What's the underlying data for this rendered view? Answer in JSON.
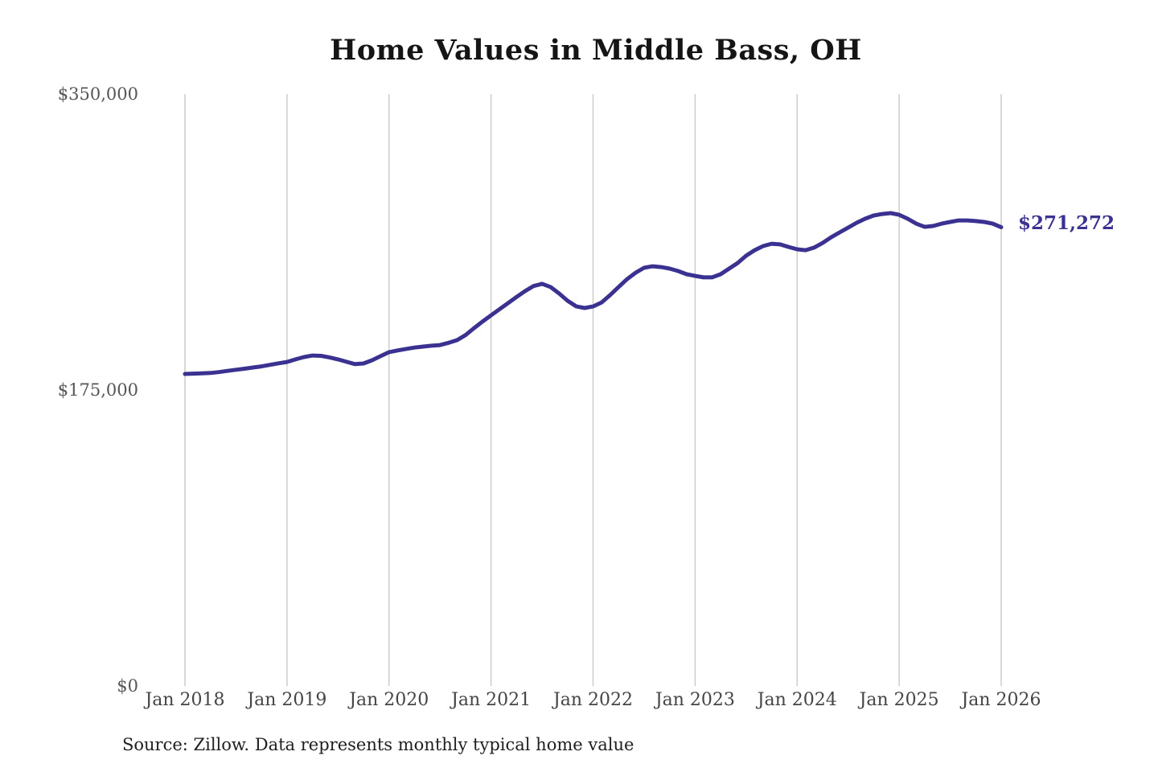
{
  "chart": {
    "title": "Home Values in Middle Bass, OH",
    "current_value_label": "$271,272",
    "source": "Source: Zillow. Data represents monthly typical home value"
  },
  "chart_data": {
    "type": "line",
    "title": "Home Values in Middle Bass, OH",
    "xlabel": "",
    "ylabel": "",
    "ylim": [
      0,
      350000
    ],
    "grid": "vertical-only",
    "legend": "none",
    "line_color": "#3a3191",
    "gridline_color": "#cccccc",
    "x_tick_labels": [
      "Jan 2018",
      "Jan 2019",
      "Jan 2020",
      "Jan 2021",
      "Jan 2022",
      "Jan 2023",
      "Jan 2024",
      "Jan 2025",
      "Jan 2026"
    ],
    "y_tick_labels": [
      "$350,000",
      "$175,000",
      "$0"
    ],
    "y_tick_values": [
      350000,
      175000,
      0
    ],
    "x_unit": "monthly, Jan 2018 through Jan 2026",
    "annotation": {
      "text": "$271,272",
      "attached_to": "last point"
    },
    "series": [
      {
        "name": "Typical home value",
        "values": [
          184500,
          184700,
          184900,
          185100,
          185600,
          186300,
          187000,
          187600,
          188300,
          189000,
          189900,
          190800,
          191600,
          193100,
          194500,
          195400,
          195200,
          194300,
          193100,
          191700,
          190300,
          190700,
          192600,
          195000,
          197400,
          198400,
          199300,
          200100,
          200700,
          201200,
          201600,
          202900,
          204500,
          207500,
          211600,
          215500,
          219200,
          222800,
          226400,
          230000,
          233500,
          236500,
          237800,
          235900,
          232100,
          227800,
          224500,
          223500,
          224400,
          226800,
          231100,
          235900,
          240600,
          244400,
          247300,
          248200,
          247700,
          246800,
          245400,
          243500,
          242500,
          241600,
          241600,
          243500,
          246800,
          250100,
          254400,
          257700,
          260100,
          261500,
          261100,
          259600,
          258200,
          257700,
          259200,
          262000,
          265300,
          268200,
          271000,
          273900,
          276300,
          278200,
          279100,
          279600,
          278600,
          276300,
          273400,
          271500,
          272000,
          273400,
          274400,
          275300,
          275300,
          274900,
          274400,
          273400,
          271272
        ]
      }
    ]
  }
}
